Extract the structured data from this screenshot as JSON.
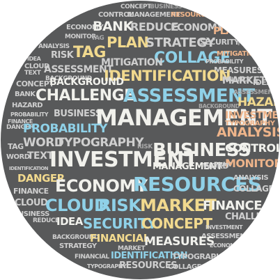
{
  "image": {
    "description_style": "circular word cloud tag collage on dark grey background",
    "colors": {
      "background": "#58595a",
      "white": "#f1f1ec",
      "yellow": "#f1d98e",
      "blue": "#8fd1e8",
      "orange": "#eeb48a",
      "grey": "#cfcfcf"
    }
  },
  "words": {
    "r1a": "CONCEPT",
    "r1b": "BUSINESS",
    "r2a": "CONTROL",
    "r2b": "MANAGEMENT",
    "r2c": "RESOURCES",
    "r3a": "ECONOMY",
    "r3b": "BANK",
    "r3c": "REDUCE",
    "r3d": "ECONOMY",
    "r3e": "PLAN",
    "r4a": "MONITOR",
    "r4b": "TAG",
    "r4c": "PLAN",
    "r4d": "STRATEGY",
    "r4e": "SECURITY",
    "r4f": "FINANCIAL",
    "r5a": "ANALYSIS",
    "r5b": "RISK",
    "r5c": "TAG",
    "r5d": "COLLAGE",
    "r5e": "MITIGATION",
    "r6a": "CLOUD",
    "r6b": "IDEA",
    "r6c": "ASSESSMENT",
    "r6d": "MITIGATION",
    "r6e": "PROBABILITY",
    "r6f": "MEASURES",
    "r7a": "TEXT",
    "r7b": "BACKGROUND",
    "r7c": "IDENTIFICATION",
    "r7d": "FINANCE",
    "r8a": "CONCEPT",
    "r8b": "BACKGROUND",
    "r8c": "MARKET",
    "r8d": "IDEA",
    "r9a": "BANK",
    "r9b": "CHALLENGE",
    "r9c": "ASSESSMENT",
    "r9d": "ASSESSMENT",
    "r10a": "HAZARD",
    "r10b": "BACKGROUND",
    "r10c": "HAZARD",
    "r11a": "PROBABILITY",
    "r11b": "BUSINESS",
    "r11c": "MANAGEMENT",
    "r11d": "INVESTMENT",
    "r12a": "DANGER",
    "r12b": "FINANCE",
    "r12c": "TYPOGRAPHY",
    "r13a": "PROBABILITY",
    "r13b": "ANALYSIS",
    "r14a": "TAG",
    "r14b": "WORD",
    "r14c": "TYPOGRAPHY",
    "r14d": "RISK",
    "r14e": "BUSINESS",
    "r14f": "CONTROL",
    "r15a": "WORD",
    "r15b": "TEXT",
    "r15c": "INVESTMENT",
    "r15d": "PLAN",
    "r15e": "MONITOR",
    "r16a": "IDENTIFICATION",
    "r16b": "MANAGEMENT",
    "r16c": "WORD",
    "r17a": "DANGER",
    "r17b": "ECONOMY",
    "r17c": "RESOURCES",
    "r17d": "ANALYSIS",
    "r18a": "FINANCE",
    "r18b": "COLLAGE",
    "r19a": "CLOUD",
    "r19b": "CLOUD",
    "r19c": "RISK",
    "r19d": "MARKET",
    "r19e": "FINANCE",
    "r20a": "BUSINESS",
    "r20b": "CHALLENGE",
    "r21a": "REDUCE",
    "r21b": "IDEA",
    "r21c": "SECURITY",
    "r21d": "CONCEPT",
    "r21e": "INVESTMENT",
    "r22a": "BACKGROUND",
    "r22b": "ASSESSMENT",
    "r23a": "FINANCIAL",
    "r23b": "MEASURES",
    "r23c": "ECONOMY",
    "r24a": "STRATEGY",
    "r24b": "MARKET",
    "r25a": "FINANCIAL",
    "r25b": "IDENTIFICATION",
    "r25c": "TYPOGRAPHY",
    "r26a": "TYPOGRAPHY",
    "r26b": "RESOURCES",
    "r26c": "COLLAGE"
  }
}
